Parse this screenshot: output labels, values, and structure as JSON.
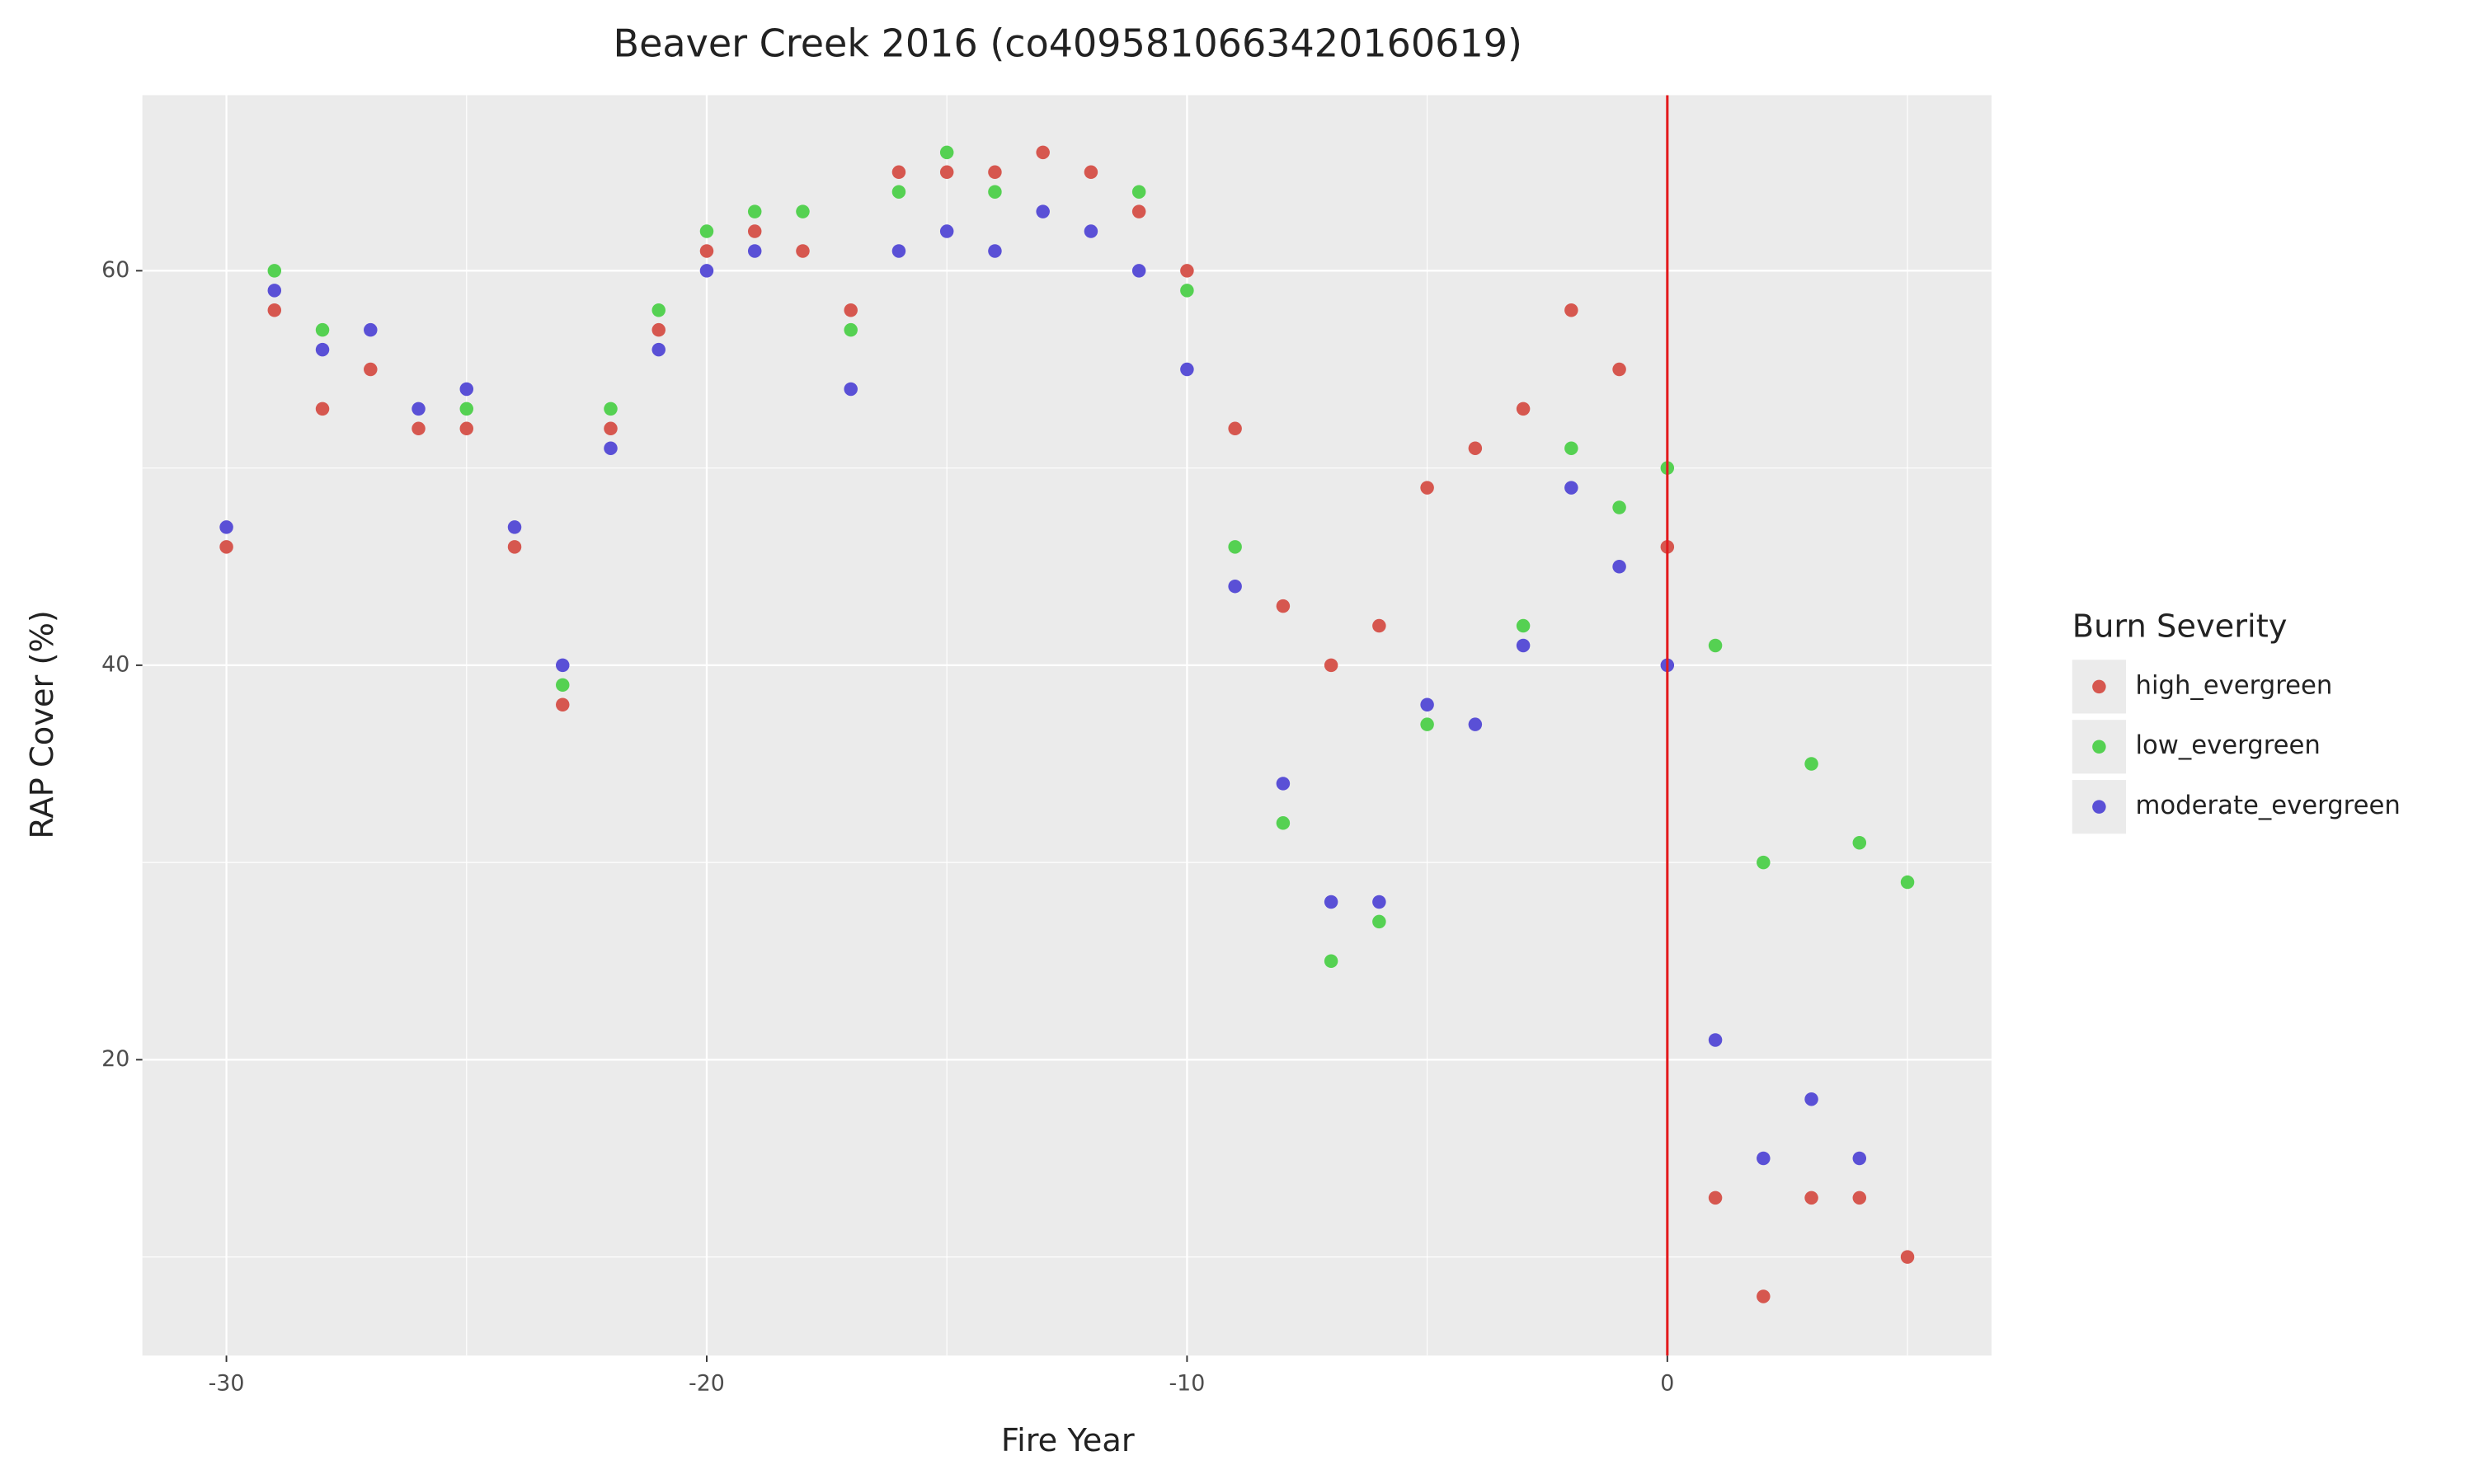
{
  "chart_data": {
    "type": "scatter",
    "title": "Beaver Creek 2016 (co40958106634201606​19)",
    "x_label": "Fire Year",
    "y_label": "RAP Cover (%)",
    "legend_title": "Burn Severity",
    "legend": "right",
    "x": [
      -30,
      -29,
      -28,
      -27,
      -26,
      -25,
      -24,
      -23,
      -22,
      -21,
      -20,
      -19,
      -18,
      -17,
      -16,
      -15,
      -14,
      -13,
      -12,
      -11,
      -10,
      -9,
      -8,
      -7,
      -6,
      -5,
      -4,
      -3,
      -2,
      -1,
      0,
      1,
      2,
      3,
      4,
      5
    ],
    "series": [
      {
        "name": "high_evergreen",
        "color": "#d6574f",
        "values": [
          46,
          58,
          53,
          55,
          52,
          52,
          46,
          38,
          52,
          57,
          61,
          62,
          61,
          58,
          65,
          65,
          65,
          66,
          65,
          63,
          60,
          52,
          43,
          40,
          42,
          49,
          51,
          53,
          58,
          55,
          46,
          13,
          8,
          13,
          13,
          10
        ]
      },
      {
        "name": "low_evergreen",
        "color": "#55d152",
        "values": [
          null,
          60,
          57,
          null,
          null,
          53,
          null,
          39,
          53,
          58,
          62,
          63,
          63,
          57,
          64,
          66,
          64,
          null,
          null,
          64,
          59,
          46,
          32,
          25,
          27,
          37,
          null,
          42,
          51,
          48,
          50,
          41,
          30,
          35,
          31,
          29
        ]
      },
      {
        "name": "moderate_evergreen",
        "color": "#5a50d6",
        "values": [
          47,
          59,
          56,
          57,
          53,
          54,
          47,
          40,
          51,
          56,
          60,
          61,
          null,
          54,
          61,
          62,
          61,
          63,
          62,
          60,
          55,
          44,
          34,
          28,
          28,
          38,
          37,
          41,
          49,
          45,
          40,
          21,
          15,
          18,
          15,
          null
        ]
      }
    ],
    "xlim": [
      -31.75,
      6.75
    ],
    "ylim": [
      5,
      68.9
    ],
    "xticks": [
      -30,
      -20,
      -10,
      0
    ],
    "yticks": [
      20,
      40,
      60
    ],
    "x_minor_ticks": [
      -25,
      -15,
      -5,
      5
    ],
    "y_minor_ticks": [
      10,
      30,
      50
    ],
    "grid": true,
    "vline": {
      "x": 0,
      "color": "#e31a1c"
    }
  }
}
